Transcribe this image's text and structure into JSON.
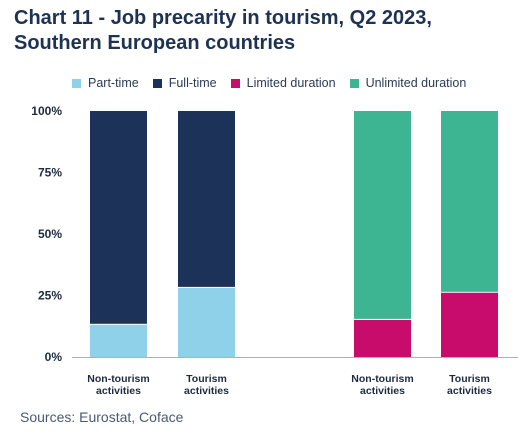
{
  "title": {
    "line1": "Chart 11 - Job precarity in tourism, Q2 2023,",
    "line2": "Southern European countries"
  },
  "source": "Sources: Eurostat, Coface",
  "colors": {
    "part_time": "#8ed1e8",
    "full_time": "#1c3259",
    "limited_duration": "#c70c6c",
    "unlimited_duration": "#3db592",
    "axis_text": "#1e2a40",
    "axis_line": "#b0b0b0"
  },
  "chart_data": {
    "type": "bar",
    "stacked": true,
    "title": "Chart 11 - Job precarity in tourism, Q2 2023, Southern European countries",
    "legend_placement": "top",
    "ylim": [
      0,
      100
    ],
    "y_ticks": [
      "0%",
      "25%",
      "50%",
      "75%",
      "100%"
    ],
    "grid": false,
    "legend": [
      {
        "key": "part_time",
        "name": "Part-time"
      },
      {
        "key": "full_time",
        "name": "Full-time"
      },
      {
        "key": "limited_duration",
        "name": "Limited duration"
      },
      {
        "key": "unlimited_duration",
        "name": "Unlimited duration"
      }
    ],
    "groups": [
      {
        "categories": [
          {
            "label1": "Non-tourism",
            "label2": "activities"
          },
          {
            "label1": "Tourism",
            "label2": "activities"
          }
        ],
        "series": [
          {
            "name": "Part-time",
            "values": [
              13.5,
              28.5
            ]
          },
          {
            "name": "Full-time",
            "values": [
              86.5,
              71.5
            ]
          }
        ]
      },
      {
        "categories": [
          {
            "label1": "Non-tourism",
            "label2": "activities"
          },
          {
            "label1": "Tourism",
            "label2": "activities"
          }
        ],
        "series": [
          {
            "name": "Limited duration",
            "values": [
              15.5,
              26.5
            ]
          },
          {
            "name": "Unlimited duration",
            "values": [
              84.5,
              73.5
            ]
          }
        ]
      }
    ]
  }
}
